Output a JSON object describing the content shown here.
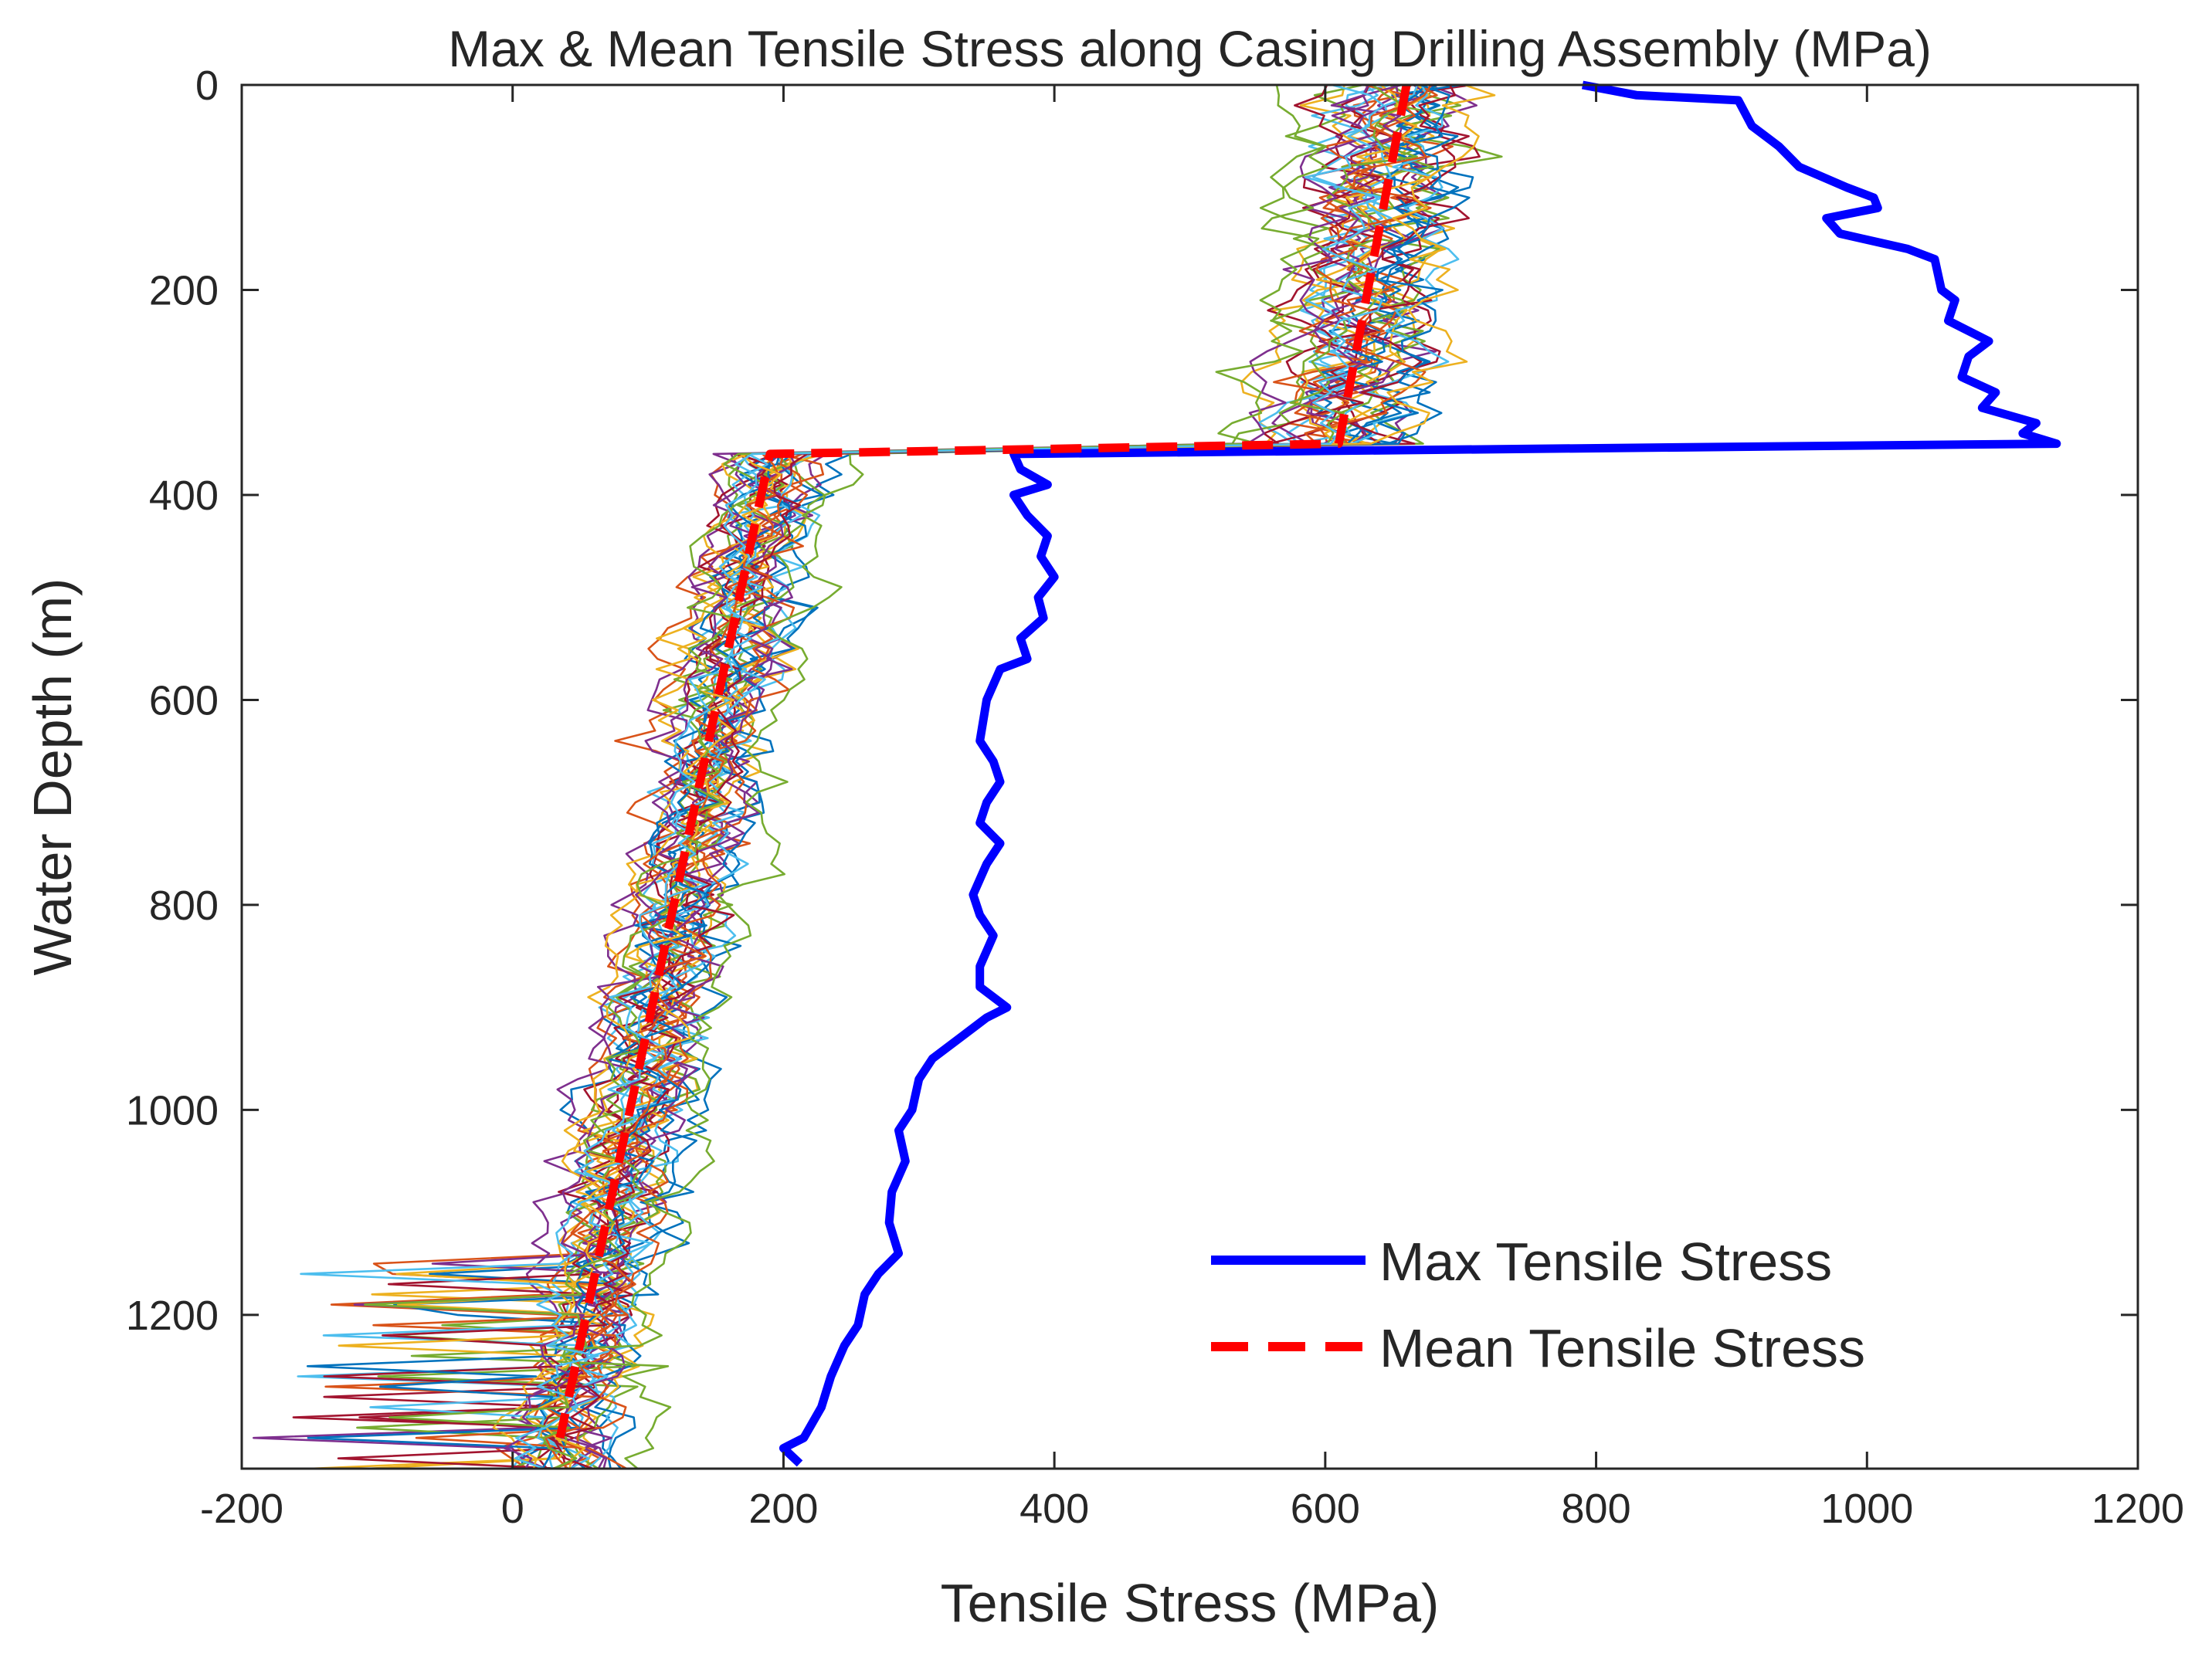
{
  "chart_data": {
    "type": "line",
    "title": "Max & Mean Tensile Stress along Casing Drilling Assembly (MPa)",
    "xlabel": "Tensile Stress (MPa)",
    "ylabel": "Water Depth (m)",
    "xlim": [
      -200,
      1200
    ],
    "ylim": [
      0,
      1350
    ],
    "y_reversed": true,
    "xticks": [
      -200,
      0,
      200,
      400,
      600,
      800,
      1000,
      1200
    ],
    "yticks": [
      0,
      200,
      400,
      600,
      800,
      1000,
      1200
    ],
    "xtick_labels": [
      "-200",
      "0",
      "200",
      "400",
      "600",
      "800",
      "1000",
      "1200"
    ],
    "ytick_labels": [
      "0",
      "200",
      "400",
      "600",
      "800",
      "1000",
      "1200"
    ],
    "grid": false,
    "legend_position": "bottom-right",
    "series": [
      {
        "name": "Max Tensile Stress",
        "color": "#0000ff",
        "style": "solid",
        "points": [
          {
            "x": 790,
            "y": 0
          },
          {
            "x": 830,
            "y": 10
          },
          {
            "x": 905,
            "y": 15
          },
          {
            "x": 915,
            "y": 40
          },
          {
            "x": 935,
            "y": 60
          },
          {
            "x": 950,
            "y": 80
          },
          {
            "x": 985,
            "y": 100
          },
          {
            "x": 1005,
            "y": 110
          },
          {
            "x": 1008,
            "y": 120
          },
          {
            "x": 970,
            "y": 130
          },
          {
            "x": 980,
            "y": 145
          },
          {
            "x": 1030,
            "y": 160
          },
          {
            "x": 1050,
            "y": 170
          },
          {
            "x": 1055,
            "y": 200
          },
          {
            "x": 1065,
            "y": 210
          },
          {
            "x": 1060,
            "y": 230
          },
          {
            "x": 1090,
            "y": 250
          },
          {
            "x": 1075,
            "y": 265
          },
          {
            "x": 1070,
            "y": 285
          },
          {
            "x": 1095,
            "y": 300
          },
          {
            "x": 1085,
            "y": 315
          },
          {
            "x": 1125,
            "y": 330
          },
          {
            "x": 1115,
            "y": 340
          },
          {
            "x": 1140,
            "y": 350
          },
          {
            "x": 370,
            "y": 360
          },
          {
            "x": 375,
            "y": 375
          },
          {
            "x": 395,
            "y": 390
          },
          {
            "x": 370,
            "y": 400
          },
          {
            "x": 380,
            "y": 420
          },
          {
            "x": 395,
            "y": 440
          },
          {
            "x": 390,
            "y": 460
          },
          {
            "x": 400,
            "y": 480
          },
          {
            "x": 388,
            "y": 500
          },
          {
            "x": 392,
            "y": 520
          },
          {
            "x": 375,
            "y": 540
          },
          {
            "x": 380,
            "y": 560
          },
          {
            "x": 360,
            "y": 570
          },
          {
            "x": 350,
            "y": 600
          },
          {
            "x": 345,
            "y": 640
          },
          {
            "x": 355,
            "y": 660
          },
          {
            "x": 360,
            "y": 680
          },
          {
            "x": 350,
            "y": 700
          },
          {
            "x": 345,
            "y": 720
          },
          {
            "x": 360,
            "y": 740
          },
          {
            "x": 350,
            "y": 760
          },
          {
            "x": 340,
            "y": 790
          },
          {
            "x": 345,
            "y": 810
          },
          {
            "x": 355,
            "y": 830
          },
          {
            "x": 345,
            "y": 860
          },
          {
            "x": 345,
            "y": 880
          },
          {
            "x": 365,
            "y": 900
          },
          {
            "x": 350,
            "y": 910
          },
          {
            "x": 330,
            "y": 930
          },
          {
            "x": 310,
            "y": 950
          },
          {
            "x": 300,
            "y": 970
          },
          {
            "x": 295,
            "y": 1000
          },
          {
            "x": 285,
            "y": 1020
          },
          {
            "x": 290,
            "y": 1050
          },
          {
            "x": 280,
            "y": 1080
          },
          {
            "x": 278,
            "y": 1110
          },
          {
            "x": 285,
            "y": 1140
          },
          {
            "x": 270,
            "y": 1160
          },
          {
            "x": 260,
            "y": 1180
          },
          {
            "x": 255,
            "y": 1210
          },
          {
            "x": 245,
            "y": 1230
          },
          {
            "x": 235,
            "y": 1260
          },
          {
            "x": 228,
            "y": 1290
          },
          {
            "x": 215,
            "y": 1320
          },
          {
            "x": 200,
            "y": 1330
          },
          {
            "x": 212,
            "y": 1345
          }
        ]
      },
      {
        "name": "Mean Tensile Stress",
        "color": "#ff0000",
        "style": "dashed",
        "points": [
          {
            "x": 660,
            "y": 0
          },
          {
            "x": 610,
            "y": 350
          },
          {
            "x": 190,
            "y": 360
          },
          {
            "x": 35,
            "y": 1320
          }
        ]
      }
    ],
    "realizations": {
      "description": "many thin colored random realizations around the mean profile",
      "count": 34,
      "colors": [
        "#0072BD",
        "#D95319",
        "#EDB120",
        "#7E2F8E",
        "#77AC30",
        "#4DBEEE",
        "#A2142F"
      ]
    }
  }
}
